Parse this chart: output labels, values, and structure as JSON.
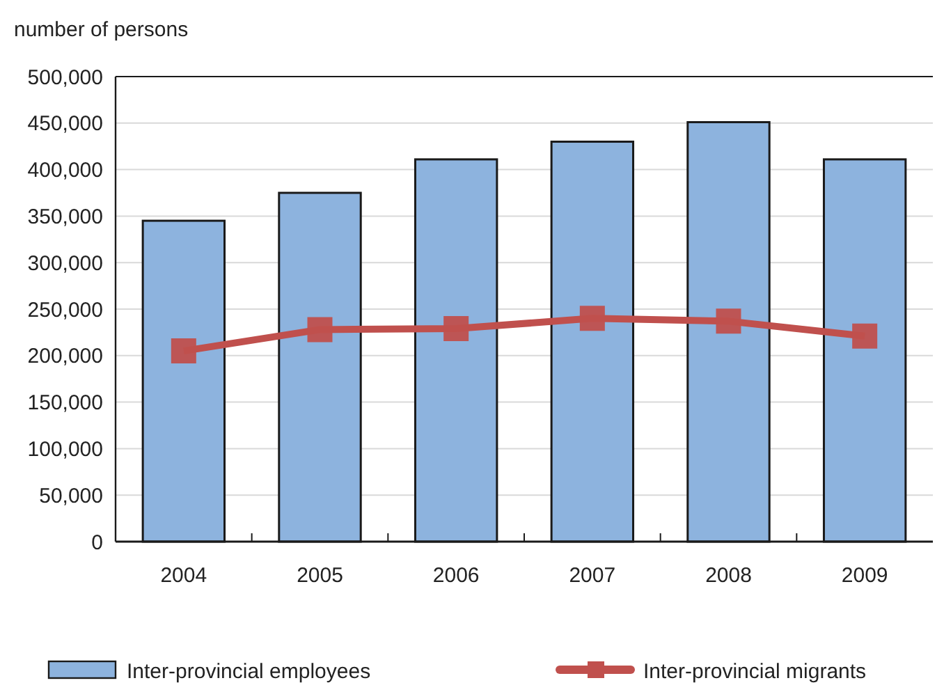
{
  "chart_data": {
    "type": "bar",
    "ylabel": "number of persons",
    "categories": [
      "2004",
      "2005",
      "2006",
      "2007",
      "2008",
      "2009"
    ],
    "series": [
      {
        "name": "Inter-provincial employees",
        "color": "#8db3de",
        "values": [
          345000,
          375000,
          411000,
          430000,
          451000,
          411000
        ]
      },
      {
        "name": "Inter-provincial migrants",
        "type": "line",
        "color": "#c0504d",
        "values": [
          205000,
          228000,
          229000,
          240000,
          237000,
          221000
        ]
      }
    ],
    "ylim": [
      0,
      500000
    ],
    "yticks": [
      {
        "value": 0,
        "label": "0"
      },
      {
        "value": 50000,
        "label": "50,000"
      },
      {
        "value": 100000,
        "label": "100,000"
      },
      {
        "value": 150000,
        "label": "150,000"
      },
      {
        "value": 200000,
        "label": "200,000"
      },
      {
        "value": 250000,
        "label": "250,000"
      },
      {
        "value": 300000,
        "label": "300,000"
      },
      {
        "value": 350000,
        "label": "350,000"
      },
      {
        "value": 400000,
        "label": "400,000"
      },
      {
        "value": 450000,
        "label": "450,000"
      },
      {
        "value": 500000,
        "label": "500,000"
      }
    ],
    "grid": "y",
    "legend": "bottom",
    "marker": "square"
  }
}
